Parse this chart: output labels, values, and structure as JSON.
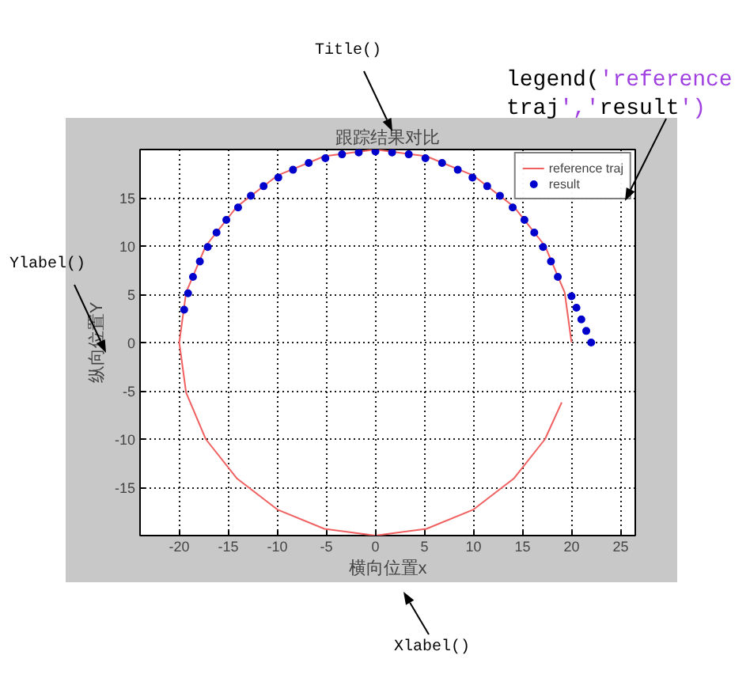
{
  "chart_data": {
    "type": "line",
    "title": "跟踪结果对比",
    "xlabel": "横向位置x",
    "ylabel": "纵向位置Y",
    "xlim": [
      -24,
      26.5
    ],
    "ylim": [
      -20,
      20
    ],
    "xticks": [
      -20,
      -15,
      -10,
      -5,
      0,
      5,
      10,
      15,
      20,
      25
    ],
    "yticks": [
      -15,
      -10,
      -5,
      0,
      5,
      10,
      15
    ],
    "grid": true,
    "legend": "top right",
    "annotations": [
      "Title()",
      "legend('reference traj','result')",
      "Ylabel()",
      "Xlabel()"
    ],
    "series": [
      {
        "name": "reference traj",
        "color": "#f06060",
        "x": [
          19.0,
          17.3,
          14.1,
          10.0,
          5.2,
          0,
          -5.2,
          -10,
          -14.1,
          -17.3,
          -19.3,
          -20,
          -19.3,
          -17.3,
          -14.1,
          -10,
          -5.2,
          0,
          5.2,
          10,
          14.1,
          17.3,
          19.3,
          20
        ],
        "values": [
          -6.2,
          -10.0,
          -14.1,
          -17.3,
          -19.3,
          -20,
          -19.3,
          -17.3,
          -14.1,
          -10,
          -5.2,
          0,
          5.2,
          10,
          14.1,
          17.3,
          19.3,
          20,
          19.3,
          17.3,
          14.1,
          10,
          5.2,
          0
        ]
      },
      {
        "name": "result",
        "type": "scatter",
        "color": "#0000cc",
        "marker": "circle",
        "x": [
          22.0,
          21.5,
          21.0,
          20.5,
          20.0,
          18.6,
          17.9,
          17.1,
          16.2,
          15.2,
          14.0,
          12.7,
          11.4,
          9.9,
          8.4,
          6.8,
          5.1,
          3.4,
          1.7,
          0.0,
          -1.7,
          -3.4,
          -5.1,
          -6.8,
          -8.4,
          -9.9,
          -11.4,
          -12.7,
          -14.0,
          -15.2,
          -16.2,
          -17.1,
          -17.9,
          -18.6,
          -19.1,
          -19.5
        ],
        "values": [
          0.0,
          1.2,
          2.4,
          3.6,
          4.8,
          6.8,
          8.4,
          9.9,
          11.4,
          12.7,
          14.0,
          15.2,
          16.2,
          17.1,
          17.9,
          18.6,
          19.1,
          19.5,
          19.7,
          19.8,
          19.7,
          19.5,
          19.1,
          18.6,
          17.9,
          17.1,
          16.2,
          15.2,
          14.0,
          12.7,
          11.4,
          9.9,
          8.4,
          6.8,
          5.1,
          3.4
        ]
      }
    ]
  }
}
